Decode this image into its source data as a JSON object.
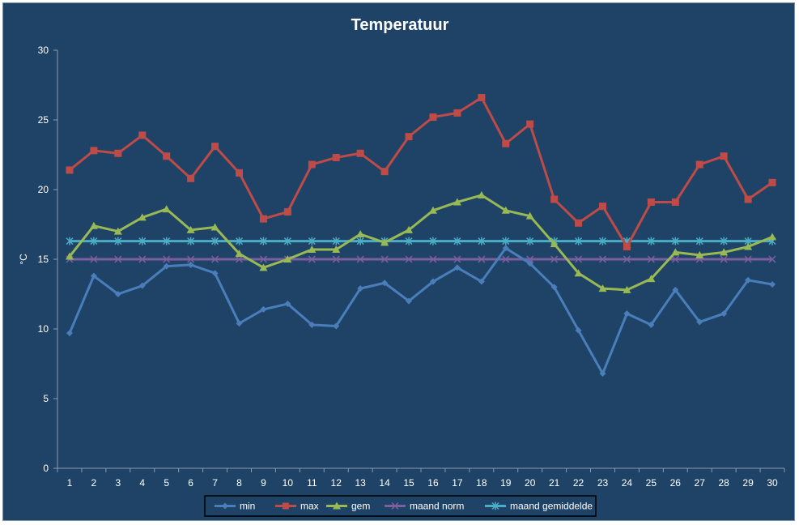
{
  "chart_data": {
    "type": "line",
    "title": "Temperatuur",
    "xlabel": "",
    "ylabel": "°C",
    "x": [
      1,
      2,
      3,
      4,
      5,
      6,
      7,
      8,
      9,
      10,
      11,
      12,
      13,
      14,
      15,
      16,
      17,
      18,
      19,
      20,
      21,
      22,
      23,
      24,
      25,
      26,
      27,
      28,
      29,
      30
    ],
    "ylim": [
      0,
      30
    ],
    "yticks": [
      0,
      5,
      10,
      15,
      20,
      25,
      30
    ],
    "grid": false,
    "legend_position": "bottom",
    "series": [
      {
        "name": "min",
        "color": "#4a7ebb",
        "marker": "diamond",
        "values": [
          9.7,
          13.8,
          12.5,
          13.1,
          14.5,
          14.6,
          14.0,
          10.4,
          11.4,
          11.8,
          10.3,
          10.2,
          12.9,
          13.3,
          12.0,
          13.4,
          14.4,
          13.4,
          15.8,
          14.7,
          13.0,
          9.9,
          6.8,
          11.1,
          10.3,
          12.8,
          10.5,
          11.1,
          13.5,
          13.2
        ]
      },
      {
        "name": "max",
        "color": "#be4b48",
        "marker": "square",
        "values": [
          21.4,
          22.8,
          22.6,
          23.9,
          22.4,
          20.8,
          23.1,
          21.2,
          17.9,
          18.4,
          21.8,
          22.3,
          22.6,
          21.3,
          23.8,
          25.2,
          25.5,
          26.6,
          23.3,
          24.7,
          19.3,
          17.6,
          18.8,
          15.9,
          19.1,
          19.1,
          21.8,
          22.4,
          19.3,
          20.5
        ]
      },
      {
        "name": "gem",
        "color": "#98b954",
        "marker": "triangle",
        "values": [
          15.2,
          17.4,
          17.0,
          18.0,
          18.6,
          17.1,
          17.3,
          15.4,
          14.4,
          15.0,
          15.7,
          15.7,
          16.8,
          16.2,
          17.1,
          18.5,
          19.1,
          19.6,
          18.5,
          18.1,
          16.1,
          14.0,
          12.9,
          12.8,
          13.6,
          15.5,
          15.3,
          15.5,
          15.9,
          16.6
        ]
      },
      {
        "name": "maand norm",
        "color": "#7d5fa0",
        "marker": "x",
        "values": [
          15,
          15,
          15,
          15,
          15,
          15,
          15,
          15,
          15,
          15,
          15,
          15,
          15,
          15,
          15,
          15,
          15,
          15,
          15,
          15,
          15,
          15,
          15,
          15,
          15,
          15,
          15,
          15,
          15,
          15
        ]
      },
      {
        "name": "maand gemiddelde",
        "color": "#4bacc6",
        "marker": "star",
        "values": [
          16.3,
          16.3,
          16.3,
          16.3,
          16.3,
          16.3,
          16.3,
          16.3,
          16.3,
          16.3,
          16.3,
          16.3,
          16.3,
          16.3,
          16.3,
          16.3,
          16.3,
          16.3,
          16.3,
          16.3,
          16.3,
          16.3,
          16.3,
          16.3,
          16.3,
          16.3,
          16.3,
          16.3,
          16.3,
          16.3
        ]
      }
    ]
  }
}
